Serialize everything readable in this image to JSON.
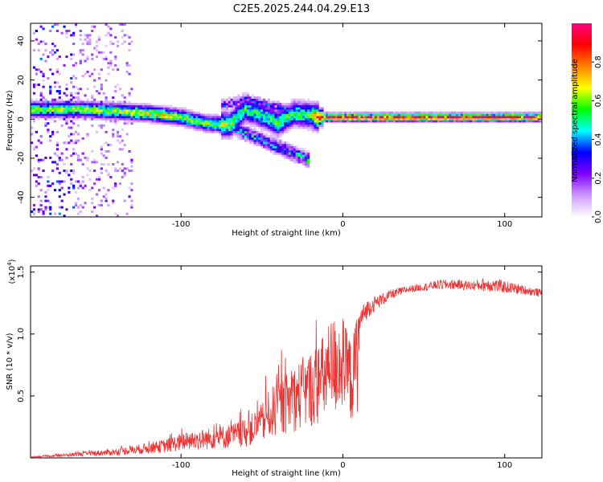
{
  "figure": {
    "title": "C2E5.2025.244.04.29.E13"
  },
  "chart_data": [
    {
      "type": "heatmap",
      "name": "spectrogram",
      "title": "C2E5.2025.244.04.29.E13",
      "xlabel": "Height of straight line (km)",
      "ylabel": "Frequency (Hz)",
      "xlim": [
        -193,
        123
      ],
      "ylim": [
        -50,
        49
      ],
      "xticks": [
        -100,
        0,
        100
      ],
      "xtick_labels": [
        "-100",
        "0",
        "100"
      ],
      "yticks": [
        -40,
        -20,
        0,
        20,
        40
      ],
      "ytick_labels": [
        "-40",
        "-20",
        "0",
        "20",
        "40"
      ],
      "colorbar": {
        "label": "Normalized spectral amplitude",
        "range": [
          0,
          1
        ],
        "ticks": [
          0.0,
          0.2,
          0.4,
          0.6,
          0.8
        ],
        "tick_labels": [
          "0.0",
          "0.2",
          "0.4",
          "0.6",
          "0.8"
        ],
        "colormap": [
          "#ffffff",
          "#cc99ff",
          "#8000ff",
          "#0000ff",
          "#00ffff",
          "#00ff00",
          "#ffff00",
          "#ff8000",
          "#ff0000",
          "#ff0080"
        ]
      },
      "ridge": {
        "description_x": [
          -193,
          -160,
          -140,
          -120,
          -100,
          -85,
          -70,
          -60,
          -50,
          -40,
          -30,
          -20,
          -15,
          0,
          50,
          100,
          123
        ],
        "freq": [
          5,
          5,
          4,
          3,
          1,
          -2,
          -3,
          5,
          2,
          -2,
          3,
          2,
          1,
          1,
          1,
          1,
          1
        ],
        "amplitude": [
          0.55,
          0.6,
          0.6,
          0.65,
          0.6,
          0.55,
          0.6,
          0.5,
          0.5,
          0.55,
          0.5,
          0.55,
          0.9,
          0.9,
          0.9,
          0.9,
          0.9
        ]
      }
    },
    {
      "type": "line",
      "name": "snr",
      "xlabel": "Height of straight line (km)",
      "ylabel": "SNR (10 * v/v)",
      "scale_label": "(x10",
      "scale_exp": "4",
      "scale_close": ")",
      "xlim": [
        -193,
        123
      ],
      "ylim": [
        0,
        1.55
      ],
      "xticks": [
        -100,
        0,
        100
      ],
      "xtick_labels": [
        "-100",
        "0",
        "100"
      ],
      "yticks": [
        0.5,
        1.0,
        1.5
      ],
      "ytick_labels": [
        "0.5",
        "1.0",
        "1.5"
      ],
      "series": [
        {
          "name": "SNR",
          "color": "#ee3333",
          "x": [
            -193,
            -180,
            -160,
            -140,
            -120,
            -110,
            -100,
            -90,
            -80,
            -70,
            -60,
            -50,
            -45,
            -40,
            -35,
            -30,
            -25,
            -20,
            -15,
            -12,
            -10,
            -5,
            0,
            5,
            10,
            15,
            20,
            30,
            40,
            50,
            60,
            70,
            80,
            90,
            100,
            110,
            123
          ],
          "y": [
            0.01,
            0.02,
            0.04,
            0.06,
            0.1,
            0.12,
            0.16,
            0.18,
            0.2,
            0.22,
            0.25,
            0.35,
            0.45,
            0.5,
            0.55,
            0.6,
            0.65,
            0.7,
            0.75,
            0.8,
            0.85,
            0.95,
            1.0,
            0.8,
            1.1,
            1.2,
            1.25,
            1.32,
            1.36,
            1.38,
            1.4,
            1.4,
            1.39,
            1.4,
            1.38,
            1.36,
            1.33
          ],
          "noise": [
            0,
            0.01,
            0.02,
            0.03,
            0.05,
            0.06,
            0.08,
            0.1,
            0.12,
            0.14,
            0.16,
            0.25,
            0.3,
            0.32,
            0.4,
            0.45,
            0.5,
            0.45,
            0.35,
            0.3,
            0.25,
            0.15,
            0.12,
            0.1,
            0.1,
            0.08,
            0.06,
            0.04,
            0.03,
            0.03,
            0.04,
            0.04,
            0.04,
            0.06,
            0.05,
            0.04,
            0.03
          ]
        }
      ]
    }
  ]
}
